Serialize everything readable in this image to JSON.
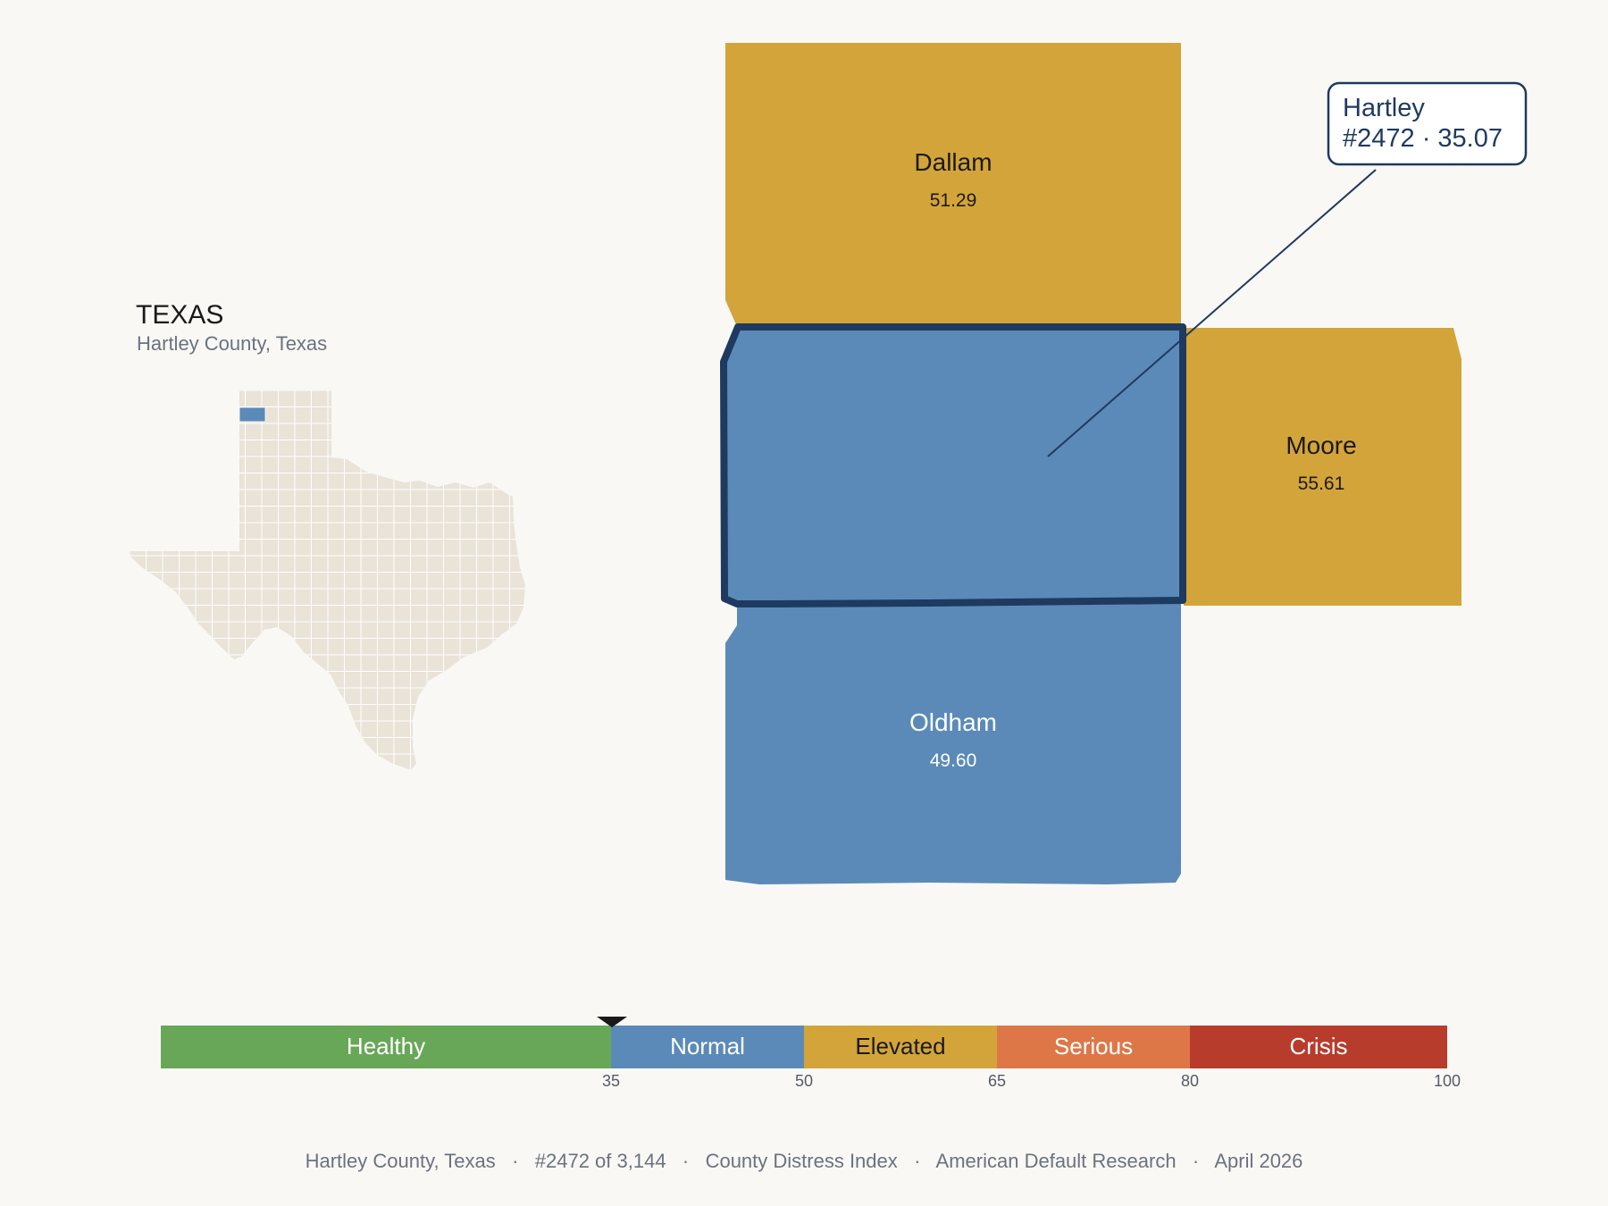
{
  "header": {
    "state": "TEXAS",
    "subtitle": "Hartley County, Texas"
  },
  "colors": {
    "background": "#f9f8f5",
    "normal": "#5b8ab9",
    "elevated": "#d3a43a",
    "healthy": "#68a758",
    "serious": "#dd7748",
    "crisis": "#b83c2c",
    "highlight_stroke": "#1e3a5f",
    "state_fill": "#e9e3d8"
  },
  "counties": [
    {
      "name": "Dallam",
      "value": "51.29",
      "band": "elevated"
    },
    {
      "name": "Hartley",
      "value": "35.07",
      "band": "normal",
      "selected": true
    },
    {
      "name": "Moore",
      "value": "55.61",
      "band": "elevated"
    },
    {
      "name": "Oldham",
      "value": "49.60",
      "band": "normal"
    }
  ],
  "callout": {
    "line1": "Hartley",
    "line2": "#2472 · 35.07"
  },
  "scale": {
    "marker_value": 35.07,
    "bands": [
      {
        "label": "Healthy",
        "from": 0,
        "to": 35,
        "color": "#68a758",
        "text_color": "#ffffff"
      },
      {
        "label": "Normal",
        "from": 35,
        "to": 50,
        "color": "#5b8ab9",
        "text_color": "#ffffff"
      },
      {
        "label": "Elevated",
        "from": 50,
        "to": 65,
        "color": "#d3a43a",
        "text_color": "#1a1a1a"
      },
      {
        "label": "Serious",
        "from": 65,
        "to": 80,
        "color": "#dd7748",
        "text_color": "#ffffff"
      },
      {
        "label": "Crisis",
        "from": 80,
        "to": 100,
        "color": "#b83c2c",
        "text_color": "#ffffff"
      }
    ],
    "ticks": [
      "35",
      "50",
      "65",
      "80",
      "100"
    ]
  },
  "footer": {
    "text": "Hartley County, Texas   ·   #2472 of 3,144   ·   County Distress Index   ·   American Default Research   ·   April 2026"
  }
}
